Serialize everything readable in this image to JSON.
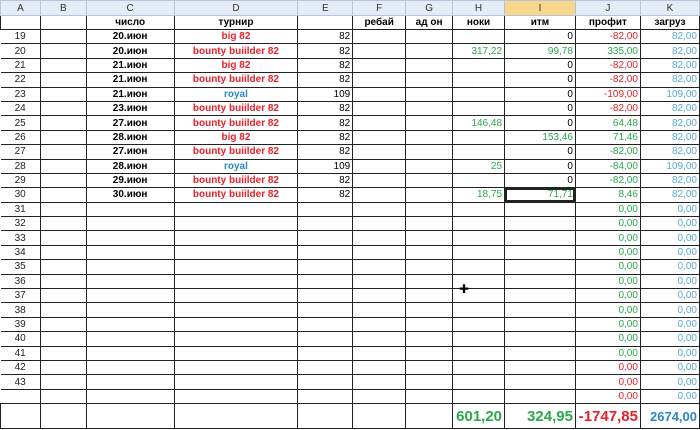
{
  "columns": [
    "A",
    "B",
    "C",
    "D",
    "E",
    "F",
    "G",
    "H",
    "I",
    "J",
    "K"
  ],
  "selected_column": "I",
  "headers": {
    "c": "число",
    "d": "турнир",
    "f": "ребай",
    "g": "ад он",
    "h": "ноки",
    "i": "итм",
    "j": "профит",
    "k": "загруз"
  },
  "rows": [
    {
      "n": "19",
      "date": "20.июн",
      "t": "big 82",
      "tc": "red",
      "e": "82",
      "h": "",
      "i": "0",
      "j": "-82,00",
      "jc": "red",
      "k": "82,00"
    },
    {
      "n": "20",
      "date": "20.июн",
      "t": "bounty buiilder 82",
      "tc": "red",
      "e": "82",
      "h": "317,22",
      "i": "99,78",
      "j": "335,00",
      "jc": "green",
      "k": "82,00"
    },
    {
      "n": "21",
      "date": "21.июн",
      "t": "big 82",
      "tc": "red",
      "e": "82",
      "h": "",
      "i": "0",
      "j": "-82,00",
      "jc": "red",
      "k": "82,00"
    },
    {
      "n": "22",
      "date": "21.июн",
      "t": "bounty buiilder 82",
      "tc": "red",
      "e": "82",
      "h": "",
      "i": "0",
      "j": "-82,00",
      "jc": "red",
      "k": "82,00"
    },
    {
      "n": "23",
      "date": "21.июн",
      "t": "royal",
      "tc": "blue",
      "e": "109",
      "h": "",
      "i": "0",
      "j": "-109,00",
      "jc": "red",
      "k": "109,00"
    },
    {
      "n": "24",
      "date": "23.июн",
      "t": "bounty buiilder 82",
      "tc": "red",
      "e": "82",
      "h": "",
      "i": "0",
      "j": "-82,00",
      "jc": "red",
      "k": "82,00"
    },
    {
      "n": "25",
      "date": "27.июн",
      "t": "bounty buiilder 82",
      "tc": "red",
      "e": "82",
      "h": "146,48",
      "i": "0",
      "j": "64,48",
      "jc": "green",
      "k": "82,00"
    },
    {
      "n": "26",
      "date": "28.июн",
      "t": "big 82",
      "tc": "red",
      "e": "82",
      "h": "",
      "i": "153,46",
      "j": "71,46",
      "jc": "green",
      "k": "82,00"
    },
    {
      "n": "27",
      "date": "27.июн",
      "t": "bounty buiilder 82",
      "tc": "red",
      "e": "82",
      "h": "",
      "i": "0",
      "j": "-82,00",
      "jc": "green",
      "k": "82,00"
    },
    {
      "n": "28",
      "date": "28.июн",
      "t": "royal",
      "tc": "blue",
      "e": "109",
      "h": "25",
      "i": "0",
      "j": "-84,00",
      "jc": "green",
      "k": "109,00"
    },
    {
      "n": "29",
      "date": "29.июн",
      "t": "bounty buiilder 82",
      "tc": "red",
      "e": "82",
      "h": "",
      "i": "0",
      "j": "-82,00",
      "jc": "green",
      "k": "82,00"
    },
    {
      "n": "30",
      "date": "30.июн",
      "t": "bounty buiilder 82",
      "tc": "red",
      "e": "82",
      "h": "18,75",
      "i": "71,71",
      "j": "8,46",
      "jc": "green",
      "k": "82,00"
    },
    {
      "n": "31",
      "j": "0,00",
      "jc": "green",
      "k": "0,00"
    },
    {
      "n": "32",
      "j": "0,00",
      "jc": "green",
      "k": "0,00"
    },
    {
      "n": "33",
      "j": "0,00",
      "jc": "green",
      "k": "0,00"
    },
    {
      "n": "34",
      "j": "0,00",
      "jc": "green",
      "k": "0,00"
    },
    {
      "n": "35",
      "j": "0,00",
      "jc": "green",
      "k": "0,00"
    },
    {
      "n": "36",
      "j": "0,00",
      "jc": "green",
      "k": "0,00"
    },
    {
      "n": "37",
      "j": "0,00",
      "jc": "green",
      "k": "0,00"
    },
    {
      "n": "38",
      "j": "0,00",
      "jc": "green",
      "k": "0,00"
    },
    {
      "n": "39",
      "j": "0,00",
      "jc": "green",
      "k": "0,00"
    },
    {
      "n": "40",
      "j": "0,00",
      "jc": "green",
      "k": "0,00"
    },
    {
      "n": "41",
      "j": "0,00",
      "jc": "green",
      "k": "0,00"
    },
    {
      "n": "42",
      "j": "0,00",
      "jc": "red",
      "k": "0,00"
    },
    {
      "n": "43",
      "j": "0,00",
      "jc": "red",
      "k": "0,00"
    },
    {
      "n": "",
      "j": "0,00",
      "jc": "red",
      "k": "0,00"
    }
  ],
  "totals": {
    "h": "601,20",
    "i": "324,95",
    "j": "-1747,85",
    "k": "2674,00"
  },
  "selected_cell": "I30"
}
